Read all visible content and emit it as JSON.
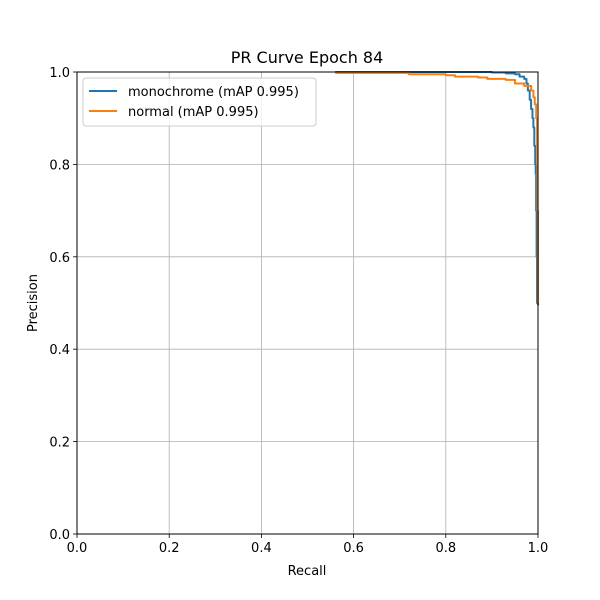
{
  "chart_data": {
    "type": "line",
    "title": "PR Curve Epoch 84",
    "xlabel": "Recall",
    "ylabel": "Precision",
    "xlim": [
      0.0,
      1.0
    ],
    "ylim": [
      0.0,
      1.0
    ],
    "grid": true,
    "legend_position": "upper left",
    "xticks": [
      "0.0",
      "0.2",
      "0.4",
      "0.6",
      "0.8",
      "1.0"
    ],
    "yticks": [
      "0.0",
      "0.2",
      "0.4",
      "0.6",
      "0.8",
      "1.0"
    ],
    "series": [
      {
        "name": "monochrome (mAP 0.995)",
        "color": "#1f77b4",
        "points": [
          [
            0.56,
            1.0
          ],
          [
            0.7,
            1.0
          ],
          [
            0.82,
            1.0
          ],
          [
            0.9,
            0.999
          ],
          [
            0.93,
            0.997
          ],
          [
            0.95,
            0.995
          ],
          [
            0.96,
            0.99
          ],
          [
            0.97,
            0.985
          ],
          [
            0.975,
            0.975
          ],
          [
            0.978,
            0.96
          ],
          [
            0.982,
            0.94
          ],
          [
            0.985,
            0.92
          ],
          [
            0.988,
            0.9
          ],
          [
            0.99,
            0.88
          ],
          [
            0.992,
            0.84
          ],
          [
            0.994,
            0.8
          ],
          [
            0.995,
            0.78
          ],
          [
            0.996,
            0.7
          ],
          [
            0.997,
            0.6
          ],
          [
            0.998,
            0.5
          ],
          [
            1.0,
            0.495
          ]
        ]
      },
      {
        "name": "normal (mAP 0.995)",
        "color": "#ff7f0e",
        "points": [
          [
            0.56,
            0.998
          ],
          [
            0.7,
            0.998
          ],
          [
            0.72,
            0.995
          ],
          [
            0.8,
            0.993
          ],
          [
            0.82,
            0.99
          ],
          [
            0.87,
            0.988
          ],
          [
            0.89,
            0.985
          ],
          [
            0.93,
            0.983
          ],
          [
            0.95,
            0.975
          ],
          [
            0.97,
            0.97
          ],
          [
            0.985,
            0.96
          ],
          [
            0.99,
            0.945
          ],
          [
            0.993,
            0.93
          ],
          [
            0.996,
            0.9
          ],
          [
            0.998,
            0.8
          ],
          [
            0.999,
            0.7
          ],
          [
            1.0,
            0.6
          ],
          [
            1.0,
            0.5
          ]
        ]
      }
    ]
  }
}
